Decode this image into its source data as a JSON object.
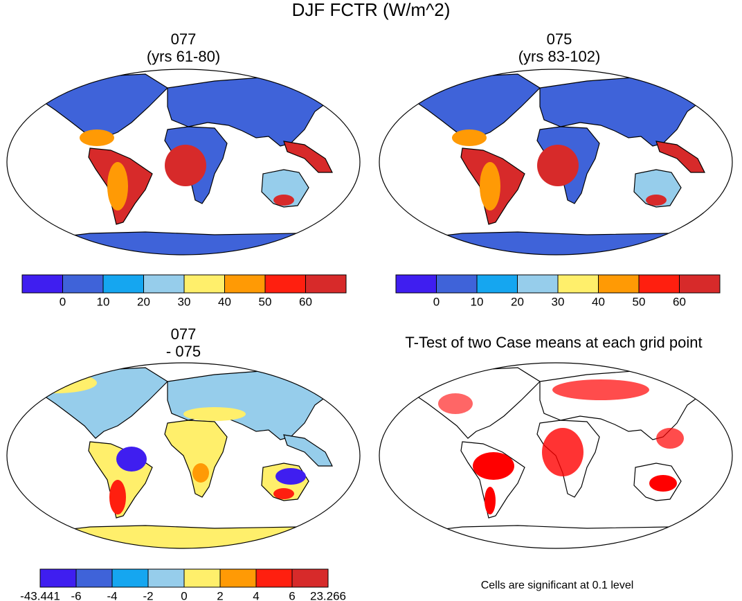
{
  "title": "DJF FCTR (W/m^2)",
  "panels": [
    {
      "title": [
        "077",
        "(yrs 61-80)"
      ],
      "colorbar": {
        "colors": [
          "#3f1ef0",
          "#3f63d9",
          "#15a6f0",
          "#96cdeb",
          "#ffef6b",
          "#ff9a05",
          "#ff1f0f",
          "#d72a2a"
        ],
        "labels": [
          0,
          10,
          20,
          30,
          40,
          50,
          60
        ]
      }
    },
    {
      "title": [
        "075",
        "(yrs 83-102)"
      ],
      "colorbar": {
        "colors": [
          "#3f1ef0",
          "#3f63d9",
          "#15a6f0",
          "#96cdeb",
          "#ffef6b",
          "#ff9a05",
          "#ff1f0f",
          "#d72a2a"
        ],
        "labels": [
          0,
          10,
          20,
          30,
          40,
          50,
          60
        ]
      }
    },
    {
      "title": [
        "077",
        "- 075"
      ],
      "colorbar": {
        "colors": [
          "#3f1ef0",
          "#3f63d9",
          "#15a6f0",
          "#96cdeb",
          "#ffef6b",
          "#ff9a05",
          "#ff1f0f",
          "#d72a2a"
        ],
        "labels": [
          -43.441,
          -6,
          -4,
          -2,
          0,
          2,
          4,
          6,
          23.266
        ]
      }
    },
    {
      "title": [
        "T-Test of two Case means at each grid point"
      ],
      "note": "Cells are significant at 0.1 level"
    }
  ]
}
